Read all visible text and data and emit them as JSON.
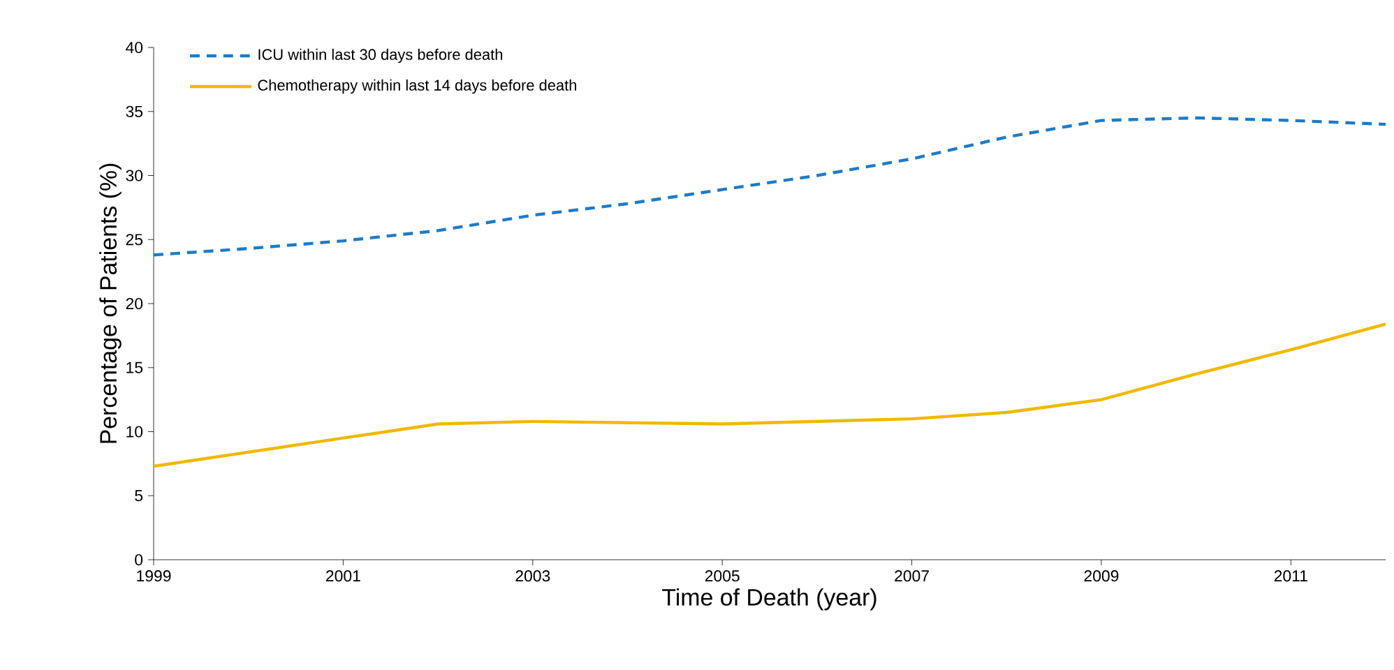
{
  "chart_data": {
    "type": "line",
    "xlabel": "Time of Death (year)",
    "ylabel": "Percentage of Patients (%)",
    "x": [
      1999,
      2000,
      2001,
      2002,
      2003,
      2004,
      2005,
      2006,
      2007,
      2008,
      2009,
      2010,
      2011,
      2012
    ],
    "series": [
      {
        "name": "ICU within last 30 days before death",
        "color": "#1f7bc4",
        "line_style": "dashed",
        "values": [
          23.8,
          24.3,
          24.9,
          25.7,
          26.9,
          27.8,
          28.9,
          30.0,
          31.3,
          33.0,
          34.3,
          34.5,
          34.3,
          34.0
        ]
      },
      {
        "name": "Chemotherapy within last 14 days before death",
        "color": "#f0b800",
        "line_style": "solid",
        "values": [
          7.3,
          8.4,
          9.5,
          10.6,
          10.8,
          10.7,
          10.6,
          10.8,
          11.0,
          11.5,
          12.5,
          14.5,
          16.4,
          18.4
        ]
      }
    ],
    "xlim": [
      1999,
      2012
    ],
    "ylim": [
      0,
      40
    ],
    "xticks": [
      1999,
      2001,
      2003,
      2005,
      2007,
      2009,
      2011
    ],
    "yticks": [
      0,
      5,
      10,
      15,
      20,
      25,
      30,
      35,
      40
    ],
    "grid": false,
    "legend": "top left",
    "marker": "none"
  }
}
